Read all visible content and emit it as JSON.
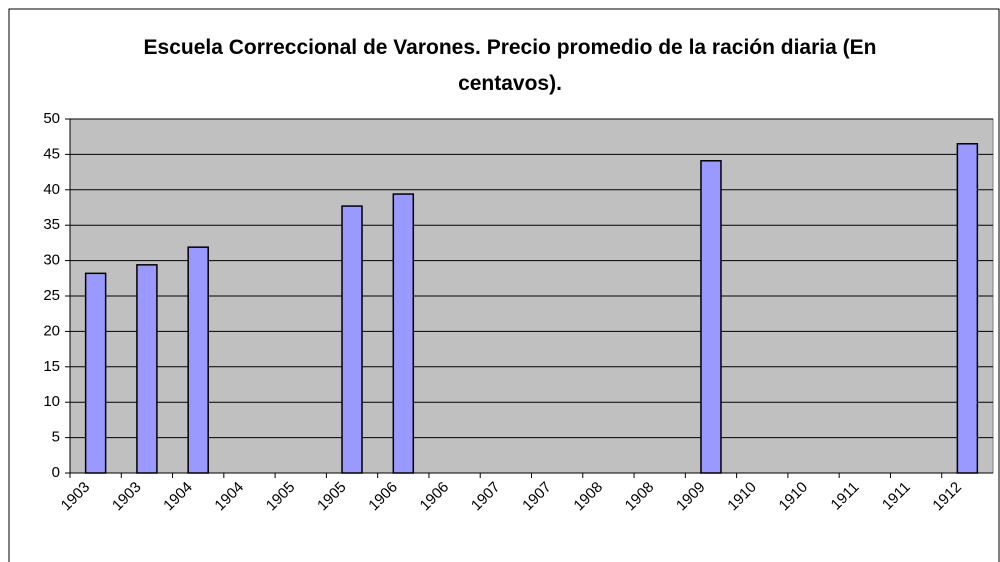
{
  "chart_data": {
    "type": "bar",
    "title": "Escuela Correccional de Varones. Precio promedio de la ración diaria  (En centavos).",
    "categories": [
      "1903",
      "1903",
      "1904",
      "1904",
      "1905",
      "1905",
      "1906",
      "1906",
      "1907",
      "1907",
      "1908",
      "1908",
      "1909",
      "1910",
      "1910",
      "1911",
      "1911",
      "1912"
    ],
    "values": [
      28.2,
      29.4,
      31.9,
      null,
      null,
      37.7,
      39.4,
      null,
      null,
      null,
      null,
      null,
      44.1,
      null,
      null,
      null,
      null,
      46.5
    ],
    "color": "#9999ff",
    "ylim": [
      0,
      50
    ],
    "yticks": [
      0,
      5,
      10,
      15,
      20,
      25,
      30,
      35,
      40,
      45,
      50
    ],
    "grid": true
  }
}
